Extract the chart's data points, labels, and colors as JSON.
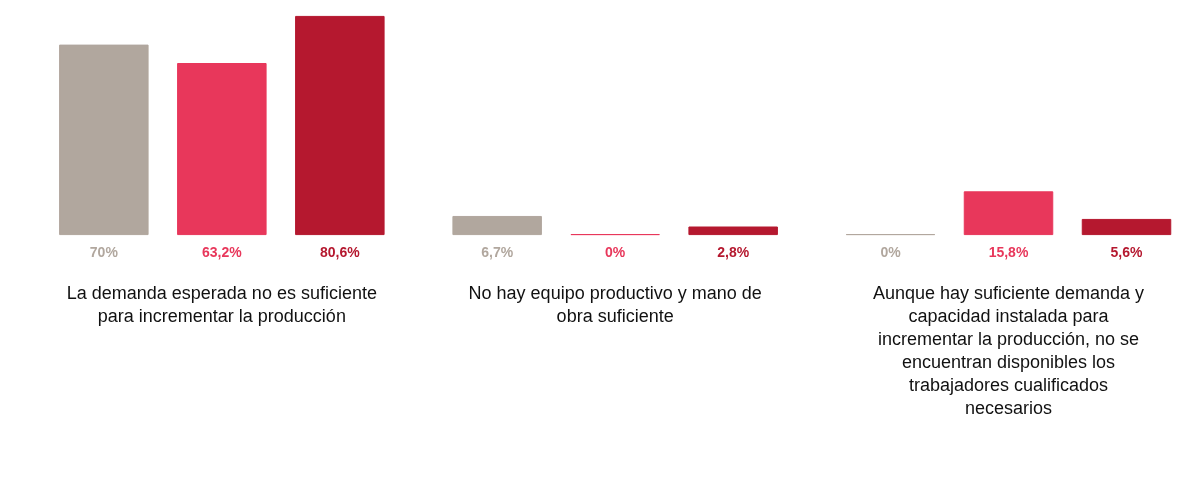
{
  "chart_data": {
    "type": "bar",
    "categories": [
      "La demanda esperada no es suficiente para incrementar la producción",
      "No hay equipo productivo y mano de obra suficiente",
      "Aunque hay suficiente demanda y capacidad instalada para incrementar la producción, no se encuentran disponibles los trabajadores cualificados necesarios"
    ],
    "series": [
      {
        "color": "#b1a79e",
        "values": [
          70,
          6.7,
          0
        ],
        "value_labels": [
          "70%",
          "6,7%",
          "0%"
        ]
      },
      {
        "color": "#e8375b",
        "values": [
          63.2,
          0,
          15.8
        ],
        "value_labels": [
          "63,2%",
          "0%",
          "15,8%"
        ]
      },
      {
        "color": "#b5182f",
        "values": [
          80.6,
          2.8,
          5.6
        ],
        "value_labels": [
          "80,6%",
          "2,8%",
          "5,6%"
        ]
      }
    ],
    "grid": false
  }
}
